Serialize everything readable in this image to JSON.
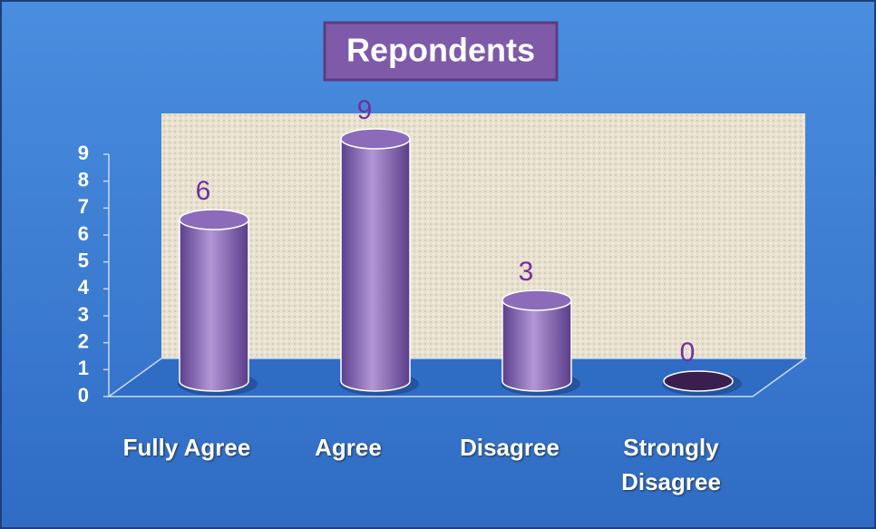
{
  "chart_data": {
    "type": "bar",
    "title": "Repondents",
    "categories": [
      "Fully Agree",
      "Agree",
      "Disagree",
      "Strongly Disagree"
    ],
    "values": [
      6,
      9,
      3,
      0
    ],
    "color": "#8a66b8",
    "ylim": [
      0,
      9
    ],
    "yticks": [
      0,
      1,
      2,
      3,
      4,
      5,
      6,
      7,
      8,
      9
    ],
    "grid": false
  }
}
